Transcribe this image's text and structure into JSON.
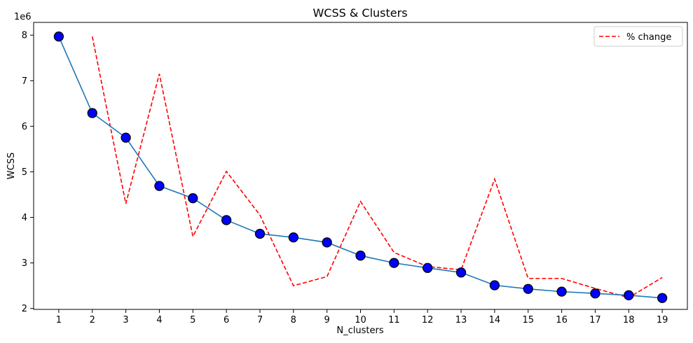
{
  "chart_data": {
    "type": "line",
    "title": "WCSS & Clusters",
    "xlabel": "N_clusters",
    "ylabel": "WCSS",
    "y_offset_label": "1e6",
    "y_scale": 1000000,
    "xlim": [
      0.25,
      19.75
    ],
    "ylim": [
      1.98,
      8.28
    ],
    "x_ticks": [
      1,
      2,
      3,
      4,
      5,
      6,
      7,
      8,
      9,
      10,
      11,
      12,
      13,
      14,
      15,
      16,
      17,
      18,
      19
    ],
    "y_ticks": [
      2,
      3,
      4,
      5,
      6,
      7,
      8
    ],
    "grid": false,
    "legend_position": "top-right",
    "series": [
      {
        "kind": "line-with-markers",
        "color": "#1f77b4",
        "marker_fill": "#0000ff",
        "marker_edge": "#000000",
        "x": [
          1,
          2,
          3,
          4,
          5,
          6,
          7,
          8,
          9,
          10,
          11,
          12,
          13,
          14,
          15,
          16,
          17,
          18,
          19
        ],
        "values": [
          7.97,
          6.29,
          5.75,
          4.69,
          4.42,
          3.94,
          3.64,
          3.56,
          3.45,
          3.16,
          3.0,
          2.89,
          2.79,
          2.51,
          2.43,
          2.37,
          2.33,
          2.29,
          2.23
        ]
      },
      {
        "name": "% change",
        "kind": "dashed-line",
        "color": "#ff0000",
        "x": [
          2,
          3,
          4,
          5,
          6,
          7,
          8,
          9,
          10,
          11,
          12,
          13,
          14,
          15,
          16,
          17,
          18,
          19
        ],
        "values": [
          7.97,
          4.3,
          7.15,
          3.58,
          5.01,
          4.05,
          2.5,
          2.7,
          4.35,
          3.23,
          2.92,
          2.85,
          4.84,
          2.66,
          2.66,
          2.44,
          2.24,
          2.68
        ]
      }
    ]
  }
}
